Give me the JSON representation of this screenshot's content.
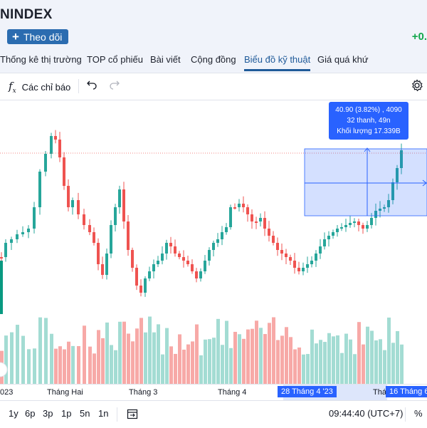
{
  "header": {
    "title": "NINDEX",
    "follow_label": "Theo dõi",
    "change": "+0."
  },
  "tabs": [
    {
      "label": "Thống kê thị trường"
    },
    {
      "label": "TOP cổ phiếu"
    },
    {
      "label": "Bài viết"
    },
    {
      "label": "Cộng đồng"
    },
    {
      "label": "Biểu đồ kỹ thuật",
      "active": true
    },
    {
      "label": "Giá quá khứ"
    }
  ],
  "toolbar": {
    "indicators_label": "Các chỉ báo",
    "indicators_icon": "fx-icon",
    "undo_icon": "undo-icon",
    "redo_icon": "redo-icon",
    "settings_icon": "gear-icon"
  },
  "measure_tooltip": {
    "line1": "40.90 (3.82%) , 4090",
    "line2": "32 thanh, 49n",
    "line3": "Khối lượng 17.339B"
  },
  "time_axis": {
    "labels": [
      "023",
      "Tháng Hai",
      "Tháng 3",
      "Tháng 4",
      "Thá"
    ],
    "range_start": "28 Tháng 4 '23",
    "range_end": "16 Tháng 6"
  },
  "bottom_bar": {
    "periods": [
      "1y",
      "6p",
      "3p",
      "1p",
      "5n",
      "1n"
    ],
    "clock": "09:44:40 (UTC+7)",
    "percent": "%"
  },
  "colors": {
    "up": "#26a69a",
    "down": "#ef5350",
    "accent": "#2962ff"
  }
}
